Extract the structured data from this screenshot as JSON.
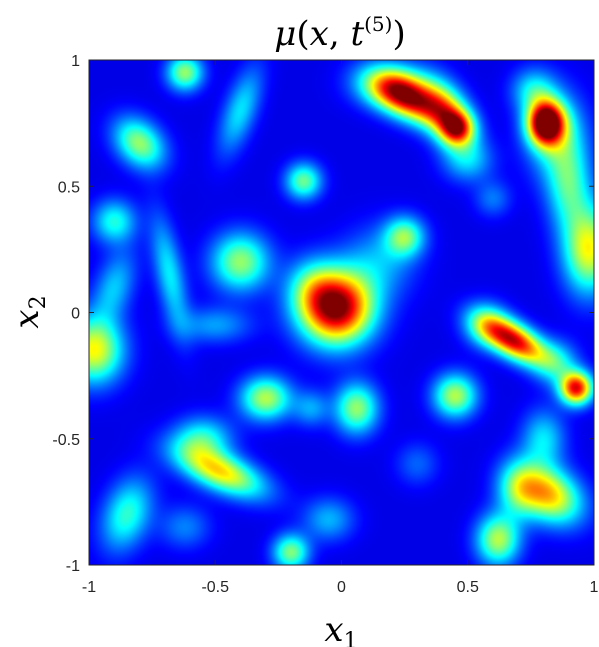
{
  "chart_data": {
    "type": "heatmap",
    "title": {
      "symbol": "μ",
      "open": "(",
      "var": "x",
      "comma": ", ",
      "t": "t",
      "sup": "(5)",
      "close": ")"
    },
    "xlabel": {
      "base": "x",
      "sub": "1"
    },
    "ylabel": {
      "base": "x",
      "sub": "2"
    },
    "xlim": [
      -1,
      1
    ],
    "ylim": [
      -1,
      1
    ],
    "xticks": [
      -1,
      -0.5,
      0,
      0.5,
      1
    ],
    "yticks": [
      -1,
      -0.5,
      0,
      0.5,
      1
    ],
    "xtick_labels": [
      "-1",
      "-0.5",
      "0",
      "0.5",
      "1"
    ],
    "ytick_labels": [
      "-1",
      "-0.5",
      "0",
      "0.5",
      "1"
    ],
    "colormap": "jet",
    "background_value": 0.1,
    "grid": false,
    "blobs": [
      {
        "x": -0.62,
        "y": 0.95,
        "amp": 0.42,
        "sx": 0.05,
        "sy": 0.05,
        "rho": 0
      },
      {
        "x": -0.4,
        "y": 0.8,
        "amp": 0.25,
        "sx": 0.06,
        "sy": 0.12,
        "rho": 0.6
      },
      {
        "x": -0.8,
        "y": 0.67,
        "amp": 0.42,
        "sx": 0.07,
        "sy": 0.07,
        "rho": -0.3
      },
      {
        "x": -0.15,
        "y": 0.52,
        "amp": 0.38,
        "sx": 0.05,
        "sy": 0.05,
        "rho": 0
      },
      {
        "x": -0.9,
        "y": 0.36,
        "amp": 0.3,
        "sx": 0.06,
        "sy": 0.06,
        "rho": 0
      },
      {
        "x": -0.68,
        "y": 0.15,
        "amp": 0.26,
        "sx": 0.05,
        "sy": 0.16,
        "rho": -0.6
      },
      {
        "x": -0.4,
        "y": 0.2,
        "amp": 0.42,
        "sx": 0.08,
        "sy": 0.08,
        "rho": 0
      },
      {
        "x": -0.9,
        "y": 0.1,
        "amp": 0.22,
        "sx": 0.06,
        "sy": 0.1,
        "rho": 0.4
      },
      {
        "x": -0.5,
        "y": -0.05,
        "amp": 0.18,
        "sx": 0.1,
        "sy": 0.05,
        "rho": 0
      },
      {
        "x": -0.98,
        "y": -0.15,
        "amp": 0.52,
        "sx": 0.08,
        "sy": 0.09,
        "rho": 0
      },
      {
        "x": -0.02,
        "y": 0.02,
        "amp": 0.93,
        "sx": 0.1,
        "sy": 0.1,
        "rho": 0
      },
      {
        "x": -0.12,
        "y": 0.1,
        "amp": 0.2,
        "sx": 0.07,
        "sy": 0.08,
        "rho": 0
      },
      {
        "x": 0.25,
        "y": 0.3,
        "amp": 0.38,
        "sx": 0.055,
        "sy": 0.055,
        "rho": 0
      },
      {
        "x": 0.15,
        "y": 0.2,
        "amp": 0.18,
        "sx": 0.1,
        "sy": 0.1,
        "rho": 0
      },
      {
        "x": 0.26,
        "y": 0.85,
        "amp": 0.75,
        "sx": 0.1,
        "sy": 0.07,
        "rho": -0.5
      },
      {
        "x": 0.42,
        "y": 0.78,
        "amp": 0.55,
        "sx": 0.07,
        "sy": 0.09,
        "rho": -0.4
      },
      {
        "x": 0.46,
        "y": 0.73,
        "amp": 0.48,
        "sx": 0.045,
        "sy": 0.045,
        "rho": 0
      },
      {
        "x": 0.2,
        "y": 0.9,
        "amp": 0.3,
        "sx": 0.1,
        "sy": 0.06,
        "rho": 0
      },
      {
        "x": 0.5,
        "y": 0.6,
        "amp": 0.2,
        "sx": 0.07,
        "sy": 0.06,
        "rho": 0
      },
      {
        "x": 0.6,
        "y": 0.45,
        "amp": 0.14,
        "sx": 0.05,
        "sy": 0.05,
        "rho": 0
      },
      {
        "x": 0.81,
        "y": 0.75,
        "amp": 0.95,
        "sx": 0.05,
        "sy": 0.06,
        "rho": 0
      },
      {
        "x": 0.85,
        "y": 0.7,
        "amp": 0.3,
        "sx": 0.08,
        "sy": 0.12,
        "rho": 0
      },
      {
        "x": 0.76,
        "y": 0.88,
        "amp": 0.25,
        "sx": 0.06,
        "sy": 0.06,
        "rho": 0
      },
      {
        "x": 0.9,
        "y": 0.5,
        "amp": 0.3,
        "sx": 0.06,
        "sy": 0.12,
        "rho": 0
      },
      {
        "x": 0.98,
        "y": 0.25,
        "amp": 0.52,
        "sx": 0.07,
        "sy": 0.12,
        "rho": 0
      },
      {
        "x": 0.68,
        "y": -0.11,
        "amp": 0.82,
        "sx": 0.09,
        "sy": 0.065,
        "rho": -0.6
      },
      {
        "x": 0.57,
        "y": -0.05,
        "amp": 0.25,
        "sx": 0.06,
        "sy": 0.06,
        "rho": 0
      },
      {
        "x": 0.93,
        "y": -0.3,
        "amp": 0.78,
        "sx": 0.045,
        "sy": 0.045,
        "rho": 0
      },
      {
        "x": 0.85,
        "y": -0.2,
        "amp": 0.25,
        "sx": 0.06,
        "sy": 0.06,
        "rho": 0
      },
      {
        "x": 0.45,
        "y": -0.33,
        "amp": 0.45,
        "sx": 0.06,
        "sy": 0.06,
        "rho": 0
      },
      {
        "x": 0.06,
        "y": -0.38,
        "amp": 0.42,
        "sx": 0.06,
        "sy": 0.07,
        "rho": 0
      },
      {
        "x": -0.3,
        "y": -0.34,
        "amp": 0.45,
        "sx": 0.07,
        "sy": 0.06,
        "rho": 0
      },
      {
        "x": -0.12,
        "y": -0.38,
        "amp": 0.18,
        "sx": 0.05,
        "sy": 0.05,
        "rho": 0
      },
      {
        "x": -0.48,
        "y": -0.63,
        "amp": 0.55,
        "sx": 0.12,
        "sy": 0.07,
        "rho": -0.6
      },
      {
        "x": -0.55,
        "y": -0.5,
        "amp": 0.3,
        "sx": 0.08,
        "sy": 0.06,
        "rho": 0
      },
      {
        "x": -0.85,
        "y": -0.8,
        "amp": 0.32,
        "sx": 0.07,
        "sy": 0.1,
        "rho": 0.3
      },
      {
        "x": -0.62,
        "y": -0.85,
        "amp": 0.15,
        "sx": 0.07,
        "sy": 0.06,
        "rho": 0
      },
      {
        "x": -0.2,
        "y": -0.95,
        "amp": 0.4,
        "sx": 0.05,
        "sy": 0.05,
        "rho": 0
      },
      {
        "x": -0.05,
        "y": -0.82,
        "amp": 0.2,
        "sx": 0.07,
        "sy": 0.06,
        "rho": 0
      },
      {
        "x": 0.62,
        "y": -0.9,
        "amp": 0.45,
        "sx": 0.06,
        "sy": 0.07,
        "rho": 0
      },
      {
        "x": 0.7,
        "y": -0.7,
        "amp": 0.3,
        "sx": 0.06,
        "sy": 0.08,
        "rho": 0
      },
      {
        "x": 0.82,
        "y": -0.72,
        "amp": 0.58,
        "sx": 0.09,
        "sy": 0.08,
        "rho": -0.3
      },
      {
        "x": 0.8,
        "y": -0.5,
        "amp": 0.25,
        "sx": 0.06,
        "sy": 0.08,
        "rho": 0
      },
      {
        "x": 0.3,
        "y": -0.6,
        "amp": 0.12,
        "sx": 0.06,
        "sy": 0.06,
        "rho": 0
      }
    ]
  }
}
